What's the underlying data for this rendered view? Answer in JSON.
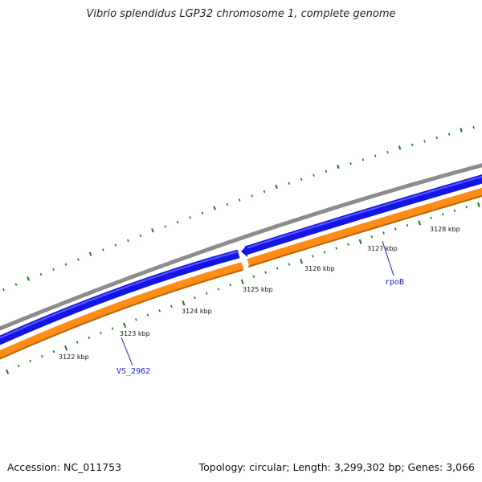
{
  "title": "Vibrio splendidus LGP32 chromosome 1, complete genome",
  "footer": {
    "accession": "Accession: NC_011753",
    "summary": "Topology: circular; Length: 3,299,302 bp; Genes: 3,066"
  },
  "colors": {
    "backbone": "#8c8c8c",
    "forward_strand": "#1414e6",
    "reverse_strand": "#ff8c14",
    "ticks": "#1a7a1a",
    "gene_label": "#1a1ac8"
  },
  "scale": {
    "unit": "kbp",
    "labels": [
      {
        "kbp": 3122,
        "text": "3122 kbp"
      },
      {
        "kbp": 3123,
        "text": "3123 kbp"
      },
      {
        "kbp": 3124,
        "text": "3124 kbp"
      },
      {
        "kbp": 3125,
        "text": "3125 kbp"
      },
      {
        "kbp": 3126,
        "text": "3126 kbp"
      },
      {
        "kbp": 3127,
        "text": "3127 kbp"
      },
      {
        "kbp": 3128,
        "text": "3128 kbp"
      }
    ]
  },
  "gene_labels": [
    {
      "name": "VS_2962"
    },
    {
      "name": "rpoB"
    }
  ]
}
